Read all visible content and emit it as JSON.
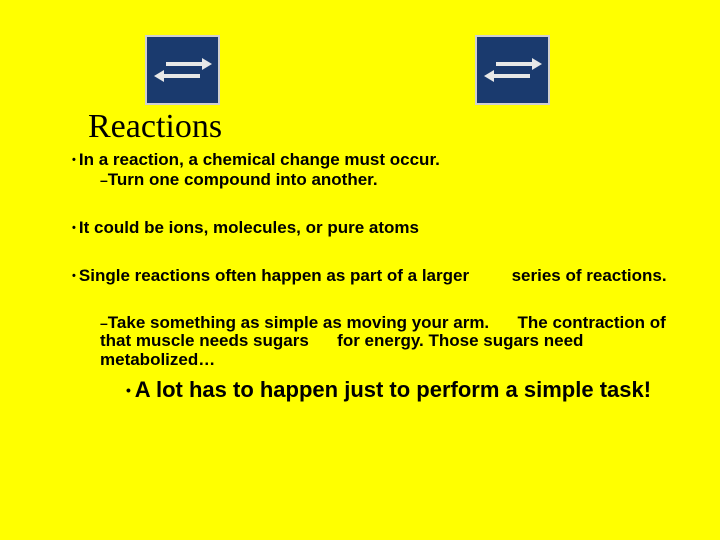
{
  "title": "Reactions",
  "bullet1_pre": "In a reaction, a ",
  "bullet1_em": "chemical change",
  "bullet1_post": " must occur.",
  "sub1": "Turn one compound into another.",
  "bullet2": "It could be ions, molecules, or pure atoms",
  "bullet3_pre": "Single reactions often happen as part of a larger ",
  "bullet3_gap": "        ",
  "bullet3_post": "series of reactions.",
  "sub2_a": "Take something as simple as moving your arm.",
  "sub2_gap1": "      ",
  "sub2_b": "The contraction of that muscle needs sugars",
  "sub2_gap2": "      ",
  "sub2_c": "for energy. Those sugars need metabolized…",
  "big": "A lot has to happen just to perform a simple task!",
  "colors": {
    "background": "#ffff00",
    "text": "#000000",
    "icon_bg": "#1a3a6e",
    "icon_border": "#d0d0d0",
    "arrow": "#e8e8e8"
  }
}
